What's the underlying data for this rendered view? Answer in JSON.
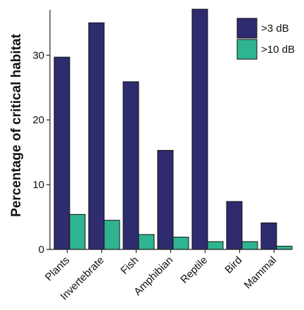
{
  "chart_data": {
    "type": "bar",
    "categories": [
      "Plants",
      "Invertebrate",
      "Fish",
      "Amphibian",
      "Reptile",
      "Bird",
      "Mammal"
    ],
    "series": [
      {
        "name": ">3 dB",
        "values": [
          29.7,
          35.0,
          25.9,
          15.3,
          37.1,
          7.4,
          4.1
        ],
        "color": "#2e2b6e"
      },
      {
        "name": ">10 dB",
        "values": [
          5.4,
          4.5,
          2.3,
          1.9,
          1.2,
          1.2,
          0.5
        ],
        "color": "#2fb491"
      }
    ],
    "ylabel": "Percentage of critical habitat",
    "xlabel": "",
    "ylim": [
      0,
      37
    ],
    "yticks": [
      0,
      10,
      20,
      30
    ],
    "legend_position": "top-right",
    "grid": false
  }
}
